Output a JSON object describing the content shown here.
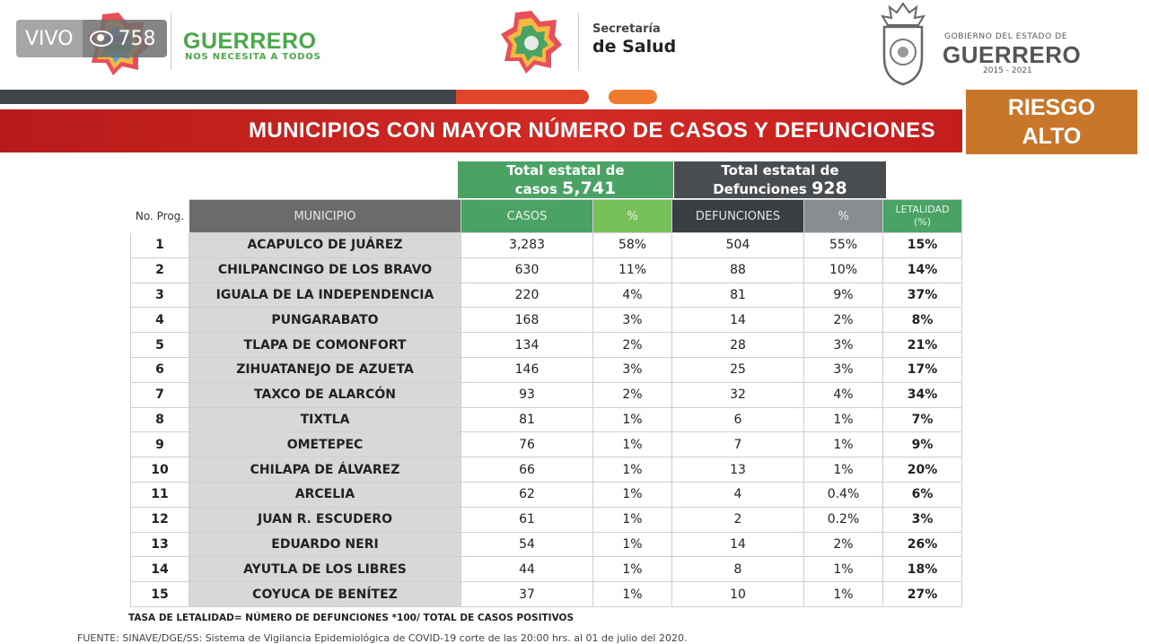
{
  "live": {
    "status": "VIVO",
    "viewers": "758"
  },
  "header": {
    "guerrero_logo": {
      "title": "GUERRERO",
      "subtitle": "NOS NECESITA A TODOS"
    },
    "secretaria": {
      "line1": "Secretaría",
      "line2": "de Salud"
    },
    "gobierno": {
      "line1": "GOBIERNO DEL ESTADO DE",
      "line2": "GUERRERO",
      "line3": "2015 - 2021"
    }
  },
  "banner": {
    "title": "MUNICIPIOS CON MAYOR NÚMERO  DE CASOS Y DEFUNCIONES"
  },
  "risk": {
    "line1": "RIESGO",
    "line2": "ALTO",
    "color": "#c8772a"
  },
  "totals": {
    "cases": {
      "label_line1": "Total estatal de",
      "label_line2": "casos",
      "value": "5,741"
    },
    "deaths": {
      "label_line1": "Total estatal de",
      "label_line2": "Defunciones",
      "value": "928"
    }
  },
  "table": {
    "headers": {
      "no": "No. Prog.",
      "municipio": "MUNICIPIO",
      "casos": "CASOS",
      "pct_casos": "%",
      "defunciones": "DEFUNCIONES",
      "pct_def": "%",
      "letalidad_1": "LETALIDAD",
      "letalidad_2": "(%)"
    },
    "rows": [
      {
        "no": "1",
        "municipio": "ACAPULCO  DE JUÁREZ",
        "casos": "3,283",
        "pct_casos": "58%",
        "defunciones": "504",
        "pct_def": "55%",
        "letalidad": "15%"
      },
      {
        "no": "2",
        "municipio": "CHILPANCINGO DE LOS BRAVO",
        "casos": "630",
        "pct_casos": "11%",
        "defunciones": "88",
        "pct_def": "10%",
        "letalidad": "14%"
      },
      {
        "no": "3",
        "municipio": "IGUALA DE LA INDEPENDENCIA",
        "casos": "220",
        "pct_casos": "4%",
        "defunciones": "81",
        "pct_def": "9%",
        "letalidad": "37%"
      },
      {
        "no": "4",
        "municipio": "PUNGARABATO",
        "casos": "168",
        "pct_casos": "3%",
        "defunciones": "14",
        "pct_def": "2%",
        "letalidad": "8%"
      },
      {
        "no": "5",
        "municipio": "TLAPA DE COMONFORT",
        "casos": "134",
        "pct_casos": "2%",
        "defunciones": "28",
        "pct_def": "3%",
        "letalidad": "21%"
      },
      {
        "no": "6",
        "municipio": "ZIHUATANEJO DE AZUETA",
        "casos": "146",
        "pct_casos": "3%",
        "defunciones": "25",
        "pct_def": "3%",
        "letalidad": "17%"
      },
      {
        "no": "7",
        "municipio": "TAXCO DE ALARCÓN",
        "casos": "93",
        "pct_casos": "2%",
        "defunciones": "32",
        "pct_def": "4%",
        "letalidad": "34%"
      },
      {
        "no": "8",
        "municipio": "TIXTLA",
        "casos": "81",
        "pct_casos": "1%",
        "defunciones": "6",
        "pct_def": "1%",
        "letalidad": "7%"
      },
      {
        "no": "9",
        "municipio": "OMETEPEC",
        "casos": "76",
        "pct_casos": "1%",
        "defunciones": "7",
        "pct_def": "1%",
        "letalidad": "9%"
      },
      {
        "no": "10",
        "municipio": "CHILAPA DE ÁLVAREZ",
        "casos": "66",
        "pct_casos": "1%",
        "defunciones": "13",
        "pct_def": "1%",
        "letalidad": "20%"
      },
      {
        "no": "11",
        "municipio": "ARCELIA",
        "casos": "62",
        "pct_casos": "1%",
        "defunciones": "4",
        "pct_def": "0.4%",
        "letalidad": "6%"
      },
      {
        "no": "12",
        "municipio": "JUAN R. ESCUDERO",
        "casos": "61",
        "pct_casos": "1%",
        "defunciones": "2",
        "pct_def": "0.2%",
        "letalidad": "3%"
      },
      {
        "no": "13",
        "municipio": "EDUARDO NERI",
        "casos": "54",
        "pct_casos": "1%",
        "defunciones": "14",
        "pct_def": "2%",
        "letalidad": "26%"
      },
      {
        "no": "14",
        "municipio": "AYUTLA DE LOS LIBRES",
        "casos": "44",
        "pct_casos": "1%",
        "defunciones": "8",
        "pct_def": "1%",
        "letalidad": "18%"
      },
      {
        "no": "15",
        "municipio": "COYUCA DE BENÍTEZ",
        "casos": "37",
        "pct_casos": "1%",
        "defunciones": "10",
        "pct_def": "1%",
        "letalidad": "27%"
      }
    ]
  },
  "footnote": "TASA DE LETALIDAD= NÚMERO DE DEFUNCIONES *100/ TOTAL DE CASOS POSITIVOS",
  "source": "FUENTE: SINAVE/DGE/SS: Sistema de Vigilancia Epidemiológica de COVID-19 corte de las 20:00 hrs. al 01 de julio del 2020.",
  "colors": {
    "green": "#4aa364",
    "dark": "#3b3e41",
    "red": "#c41d1d",
    "orange": "#c8772a"
  }
}
